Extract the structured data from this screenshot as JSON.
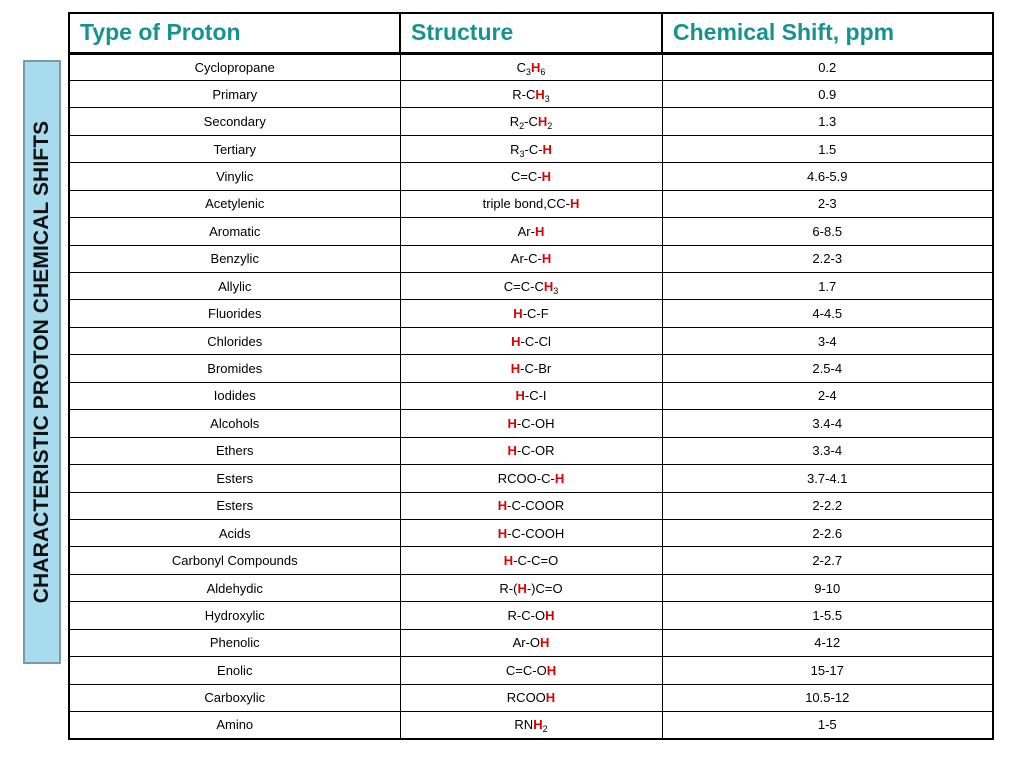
{
  "banner": "CHARACTERISTIC PROTON CHEMICAL SHIFTS",
  "colors": {
    "header_text": "#16938f",
    "highlight": "#e00000",
    "banner_bg": "#a8dcec"
  },
  "headers": [
    "Type of Proton",
    "Structure",
    "Chemical Shift, ppm"
  ],
  "rows": [
    {
      "type": "Cyclopropane",
      "structure": [
        {
          "t": "C"
        },
        {
          "t": "3",
          "sub": true
        },
        {
          "t": "H",
          "h": true
        },
        {
          "t": "6",
          "sub": true
        }
      ],
      "shift": "0.2"
    },
    {
      "type": "Primary",
      "structure": [
        {
          "t": "R-C"
        },
        {
          "t": "H",
          "h": true
        },
        {
          "t": "3",
          "sub": true
        }
      ],
      "shift": "0.9"
    },
    {
      "type": "Secondary",
      "structure": [
        {
          "t": "R"
        },
        {
          "t": "2",
          "sub": true
        },
        {
          "t": "-C"
        },
        {
          "t": "H",
          "h": true
        },
        {
          "t": "2",
          "sub": true
        }
      ],
      "shift": "1.3"
    },
    {
      "type": "Tertiary",
      "structure": [
        {
          "t": "R"
        },
        {
          "t": "3",
          "sub": true
        },
        {
          "t": "-C-"
        },
        {
          "t": "H",
          "h": true
        }
      ],
      "shift": "1.5"
    },
    {
      "type": "Vinylic",
      "structure": [
        {
          "t": "C=C-"
        },
        {
          "t": "H",
          "h": true
        }
      ],
      "shift": "4.6-5.9"
    },
    {
      "type": "Acetylenic",
      "structure": [
        {
          "t": "triple bond,CC-"
        },
        {
          "t": "H",
          "h": true
        }
      ],
      "shift": "2-3"
    },
    {
      "type": "Aromatic",
      "structure": [
        {
          "t": "Ar-"
        },
        {
          "t": "H",
          "h": true
        }
      ],
      "shift": "6-8.5"
    },
    {
      "type": "Benzylic",
      "structure": [
        {
          "t": "Ar-C-"
        },
        {
          "t": "H",
          "h": true
        }
      ],
      "shift": "2.2-3"
    },
    {
      "type": "Allylic",
      "structure": [
        {
          "t": "C=C-C"
        },
        {
          "t": "H",
          "h": true
        },
        {
          "t": "3",
          "sub": true
        }
      ],
      "shift": "1.7"
    },
    {
      "type": "Fluorides",
      "structure": [
        {
          "t": "H",
          "h": true
        },
        {
          "t": "-C-F"
        }
      ],
      "shift": "4-4.5"
    },
    {
      "type": "Chlorides",
      "structure": [
        {
          "t": "H",
          "h": true
        },
        {
          "t": "-C-Cl"
        }
      ],
      "shift": "3-4"
    },
    {
      "type": "Bromides",
      "structure": [
        {
          "t": "H",
          "h": true
        },
        {
          "t": "-C-Br"
        }
      ],
      "shift": "2.5-4"
    },
    {
      "type": "Iodides",
      "structure": [
        {
          "t": "H",
          "h": true
        },
        {
          "t": "-C-I"
        }
      ],
      "shift": "2-4"
    },
    {
      "type": "Alcohols",
      "structure": [
        {
          "t": "H",
          "h": true
        },
        {
          "t": "-C-OH"
        }
      ],
      "shift": "3.4-4"
    },
    {
      "type": "Ethers",
      "structure": [
        {
          "t": "H",
          "h": true
        },
        {
          "t": "-C-OR"
        }
      ],
      "shift": "3.3-4"
    },
    {
      "type": "Esters",
      "structure": [
        {
          "t": "RCOO-C-"
        },
        {
          "t": "H",
          "h": true
        }
      ],
      "shift": "3.7-4.1"
    },
    {
      "type": "Esters",
      "structure": [
        {
          "t": "H",
          "h": true
        },
        {
          "t": "-C-COOR"
        }
      ],
      "shift": "2-2.2"
    },
    {
      "type": "Acids",
      "structure": [
        {
          "t": "H",
          "h": true
        },
        {
          "t": "-C-COOH"
        }
      ],
      "shift": "2-2.6"
    },
    {
      "type": "Carbonyl Compounds",
      "structure": [
        {
          "t": "H",
          "h": true
        },
        {
          "t": "-C-C=O"
        }
      ],
      "shift": "2-2.7"
    },
    {
      "type": "Aldehydic",
      "structure": [
        {
          "t": "R-("
        },
        {
          "t": "H",
          "h": true
        },
        {
          "t": "-)C=O"
        }
      ],
      "shift": "9-10"
    },
    {
      "type": "Hydroxylic",
      "structure": [
        {
          "t": "R-C-O"
        },
        {
          "t": "H",
          "h": true
        }
      ],
      "shift": "1-5.5"
    },
    {
      "type": "Phenolic",
      "structure": [
        {
          "t": "Ar-O"
        },
        {
          "t": "H",
          "h": true
        }
      ],
      "shift": "4-12"
    },
    {
      "type": "Enolic",
      "structure": [
        {
          "t": "C=C-O"
        },
        {
          "t": "H",
          "h": true
        }
      ],
      "shift": "15-17"
    },
    {
      "type": "Carboxylic",
      "structure": [
        {
          "t": "RCOO"
        },
        {
          "t": "H",
          "h": true
        }
      ],
      "shift": "10.5-12"
    },
    {
      "type": "Amino",
      "structure": [
        {
          "t": "RN"
        },
        {
          "t": "H",
          "h": true
        },
        {
          "t": "2",
          "sub": true
        }
      ],
      "shift": "1-5"
    }
  ]
}
